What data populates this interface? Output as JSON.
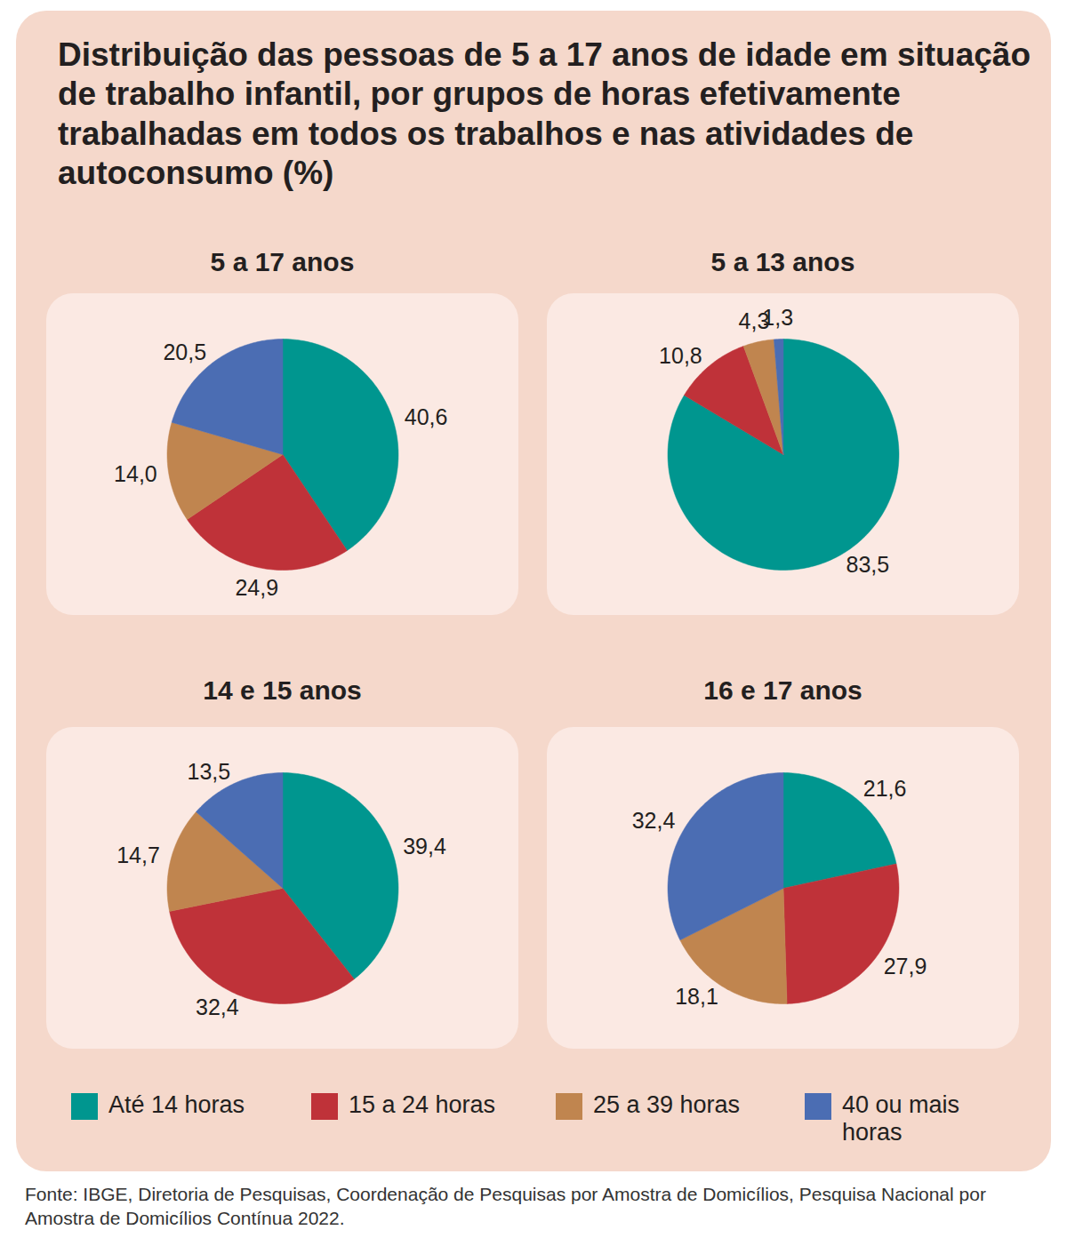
{
  "title": "Distribuição das pessoas de 5 a 17 anos de idade em situação de trabalho infantil, por grupos de horas efetivamente trabalhadas em todos os trabalhos e nas atividades de autoconsumo (%)",
  "categories": [
    "Até 14 horas",
    "15 a 24 horas",
    "25 a 39 horas",
    "40 ou mais horas"
  ],
  "colors": [
    "#00968f",
    "#bf3239",
    "#c0854f",
    "#4b6db3"
  ],
  "source": "Fonte:  IBGE, Diretoria de Pesquisas, Coordenação de Pesquisas por Amostra de Domicílios, Pesquisa Nacional por Amostra de Domicílios Contínua 2022.",
  "chart_data": [
    {
      "type": "pie",
      "title": "5 a 17 anos",
      "values": [
        40.6,
        24.9,
        14.0,
        20.5
      ],
      "value_labels": [
        "40,6",
        "24,9",
        "14,0",
        "20,5"
      ],
      "data_labels": true
    },
    {
      "type": "pie",
      "title": "5 a 13 anos",
      "values": [
        83.5,
        10.8,
        4.3,
        1.3
      ],
      "value_labels": [
        "83,5",
        "10,8",
        "4,3",
        "1,3"
      ],
      "data_labels": true
    },
    {
      "type": "pie",
      "title": "14 e 15 anos",
      "values": [
        39.4,
        32.4,
        14.7,
        13.5
      ],
      "value_labels": [
        "39,4",
        "32,4",
        "14,7",
        "13,5"
      ],
      "data_labels": true
    },
    {
      "type": "pie",
      "title": "16 e 17 anos",
      "values": [
        21.6,
        27.9,
        18.1,
        32.4
      ],
      "value_labels": [
        "21,6",
        "27,9",
        "18,1",
        "32,4"
      ],
      "data_labels": true
    }
  ]
}
